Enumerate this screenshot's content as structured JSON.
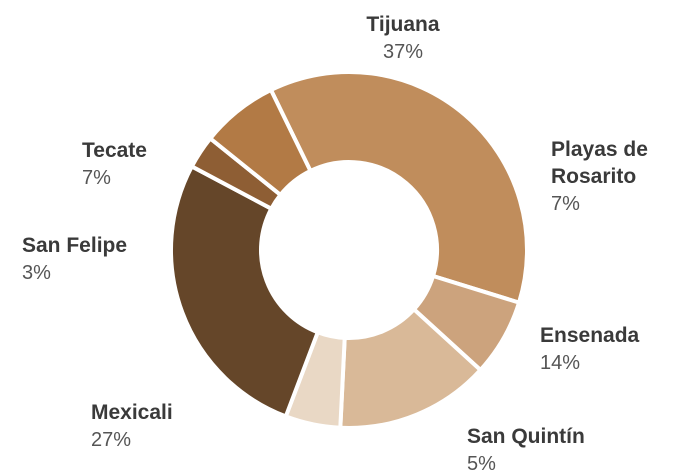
{
  "chart_data": {
    "type": "pie",
    "donut": true,
    "categories": [
      "Tijuana",
      "Playas de Rosarito",
      "Ensenada",
      "San Quintín",
      "Mexicali",
      "San Felipe",
      "Tecate"
    ],
    "values": [
      37,
      7,
      14,
      5,
      27,
      3,
      7
    ],
    "value_labels": [
      "37%",
      "7%",
      "14%",
      "5%",
      "27%",
      "3%",
      "7%"
    ],
    "label_lines": [
      [
        "Tijuana"
      ],
      [
        "Playas de",
        "Rosarito"
      ],
      [
        "Ensenada"
      ],
      [
        "San Quintín"
      ],
      [
        "Mexicali"
      ],
      [
        "San Felipe"
      ],
      [
        "Tecate"
      ]
    ],
    "colors": [
      "#c08d5c",
      "#cca37d",
      "#d9b998",
      "#e9d8c5",
      "#654629",
      "#8e5e34",
      "#b27a45"
    ],
    "title": ""
  }
}
